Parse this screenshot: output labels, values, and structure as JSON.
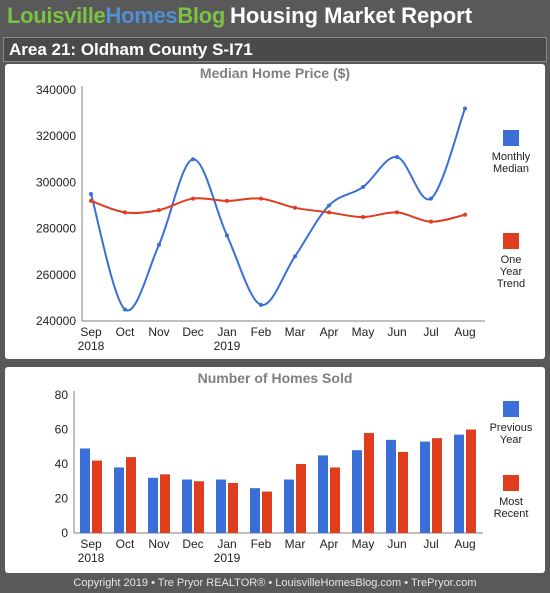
{
  "header": {
    "brand_part1": "Louisville",
    "brand_part2": "Homes",
    "brand_part3": "Blog",
    "report_title": "Housing Market Report",
    "area_title": "Area 21: Oldham County S-I71"
  },
  "colors": {
    "blue": "#3a6fd8",
    "red": "#e03c1e",
    "brand_green": "#7cc242",
    "brand_blue": "#4e8fd6",
    "background": "#595959"
  },
  "footer": {
    "text": "Copyright 2019 • Tre Pryor REALTOR® • LouisvilleHomesBlog.com • TrePryor.com"
  },
  "chart_data": [
    {
      "type": "line",
      "title": "Median Home Price ($)",
      "categories": [
        "Sep",
        "Oct",
        "Nov",
        "Dec",
        "Jan",
        "Feb",
        "Mar",
        "Apr",
        "May",
        "Jun",
        "Jul",
        "Aug"
      ],
      "year_labels": [
        "2018",
        "",
        "",
        "",
        "2019",
        "",
        "",
        "",
        "",
        "",
        "",
        ""
      ],
      "y_ticks": [
        240000,
        260000,
        280000,
        300000,
        320000,
        340000
      ],
      "y_tick_labels": [
        "240000",
        "260000",
        "280000",
        "300000",
        "320000",
        "340000"
      ],
      "ylim": [
        240000,
        340000
      ],
      "grid": false,
      "legend_position": "right",
      "series": [
        {
          "name": "Monthly Median",
          "legend_lines": [
            "Monthly",
            "Median"
          ],
          "color": "#3a6fd8",
          "smooth": true,
          "values": [
            295000,
            245000,
            273000,
            310000,
            277000,
            247000,
            268000,
            290000,
            298000,
            311000,
            293000,
            332000
          ]
        },
        {
          "name": "One Year Trend",
          "legend_lines": [
            "One",
            "Year",
            "Trend"
          ],
          "color": "#e03c1e",
          "smooth": true,
          "values": [
            292000,
            287000,
            288000,
            293000,
            292000,
            293000,
            289000,
            287000,
            285000,
            287000,
            283000,
            286000
          ]
        }
      ]
    },
    {
      "type": "bar",
      "title": "Number of Homes Sold",
      "categories": [
        "Sep",
        "Oct",
        "Nov",
        "Dec",
        "Jan",
        "Feb",
        "Mar",
        "Apr",
        "May",
        "Jun",
        "Jul",
        "Aug"
      ],
      "year_labels": [
        "2018",
        "",
        "",
        "",
        "2019",
        "",
        "",
        "",
        "",
        "",
        "",
        ""
      ],
      "y_ticks": [
        0,
        20,
        40,
        60,
        80
      ],
      "y_tick_labels": [
        "0",
        "20",
        "40",
        "60",
        "80"
      ],
      "ylim": [
        0,
        80
      ],
      "grid": false,
      "legend_position": "right",
      "series": [
        {
          "name": "Previous Year",
          "legend_lines": [
            "Previous",
            "Year"
          ],
          "color": "#3a6fd8",
          "values": [
            49,
            38,
            32,
            31,
            31,
            26,
            31,
            45,
            48,
            54,
            53,
            57
          ]
        },
        {
          "name": "Most Recent",
          "legend_lines": [
            "Most",
            "Recent"
          ],
          "color": "#e03c1e",
          "values": [
            42,
            44,
            34,
            30,
            29,
            24,
            40,
            38,
            58,
            47,
            55,
            60
          ]
        }
      ]
    }
  ]
}
